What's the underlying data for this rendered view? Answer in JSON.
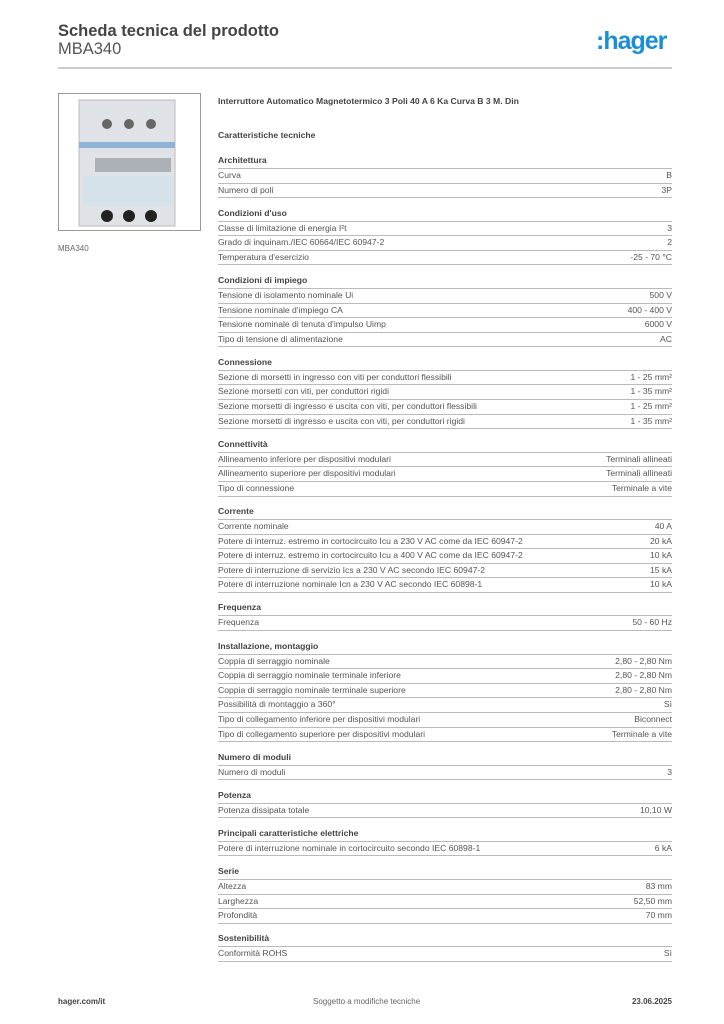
{
  "header": {
    "title": "Scheda tecnica del prodotto",
    "model": "MBA340",
    "logo": ":hager",
    "brand_color": "#1a8fd8"
  },
  "image": {
    "caption": "MBA340"
  },
  "product_name": "Interruttore Automatico Magnetotermico 3 Poli 40 A 6 Ka Curva B 3 M. Din",
  "subtitle": "Caratteristiche tecniche",
  "sections": [
    {
      "title": "Architettura",
      "rows": [
        [
          "Curva",
          "B"
        ],
        [
          "Numero di poli",
          "3P"
        ]
      ]
    },
    {
      "title": "Condizioni d'uso",
      "rows": [
        [
          "Classe di limitazione di energia I²t",
          "3"
        ],
        [
          "Grado di inquinam./IEC 60664/IEC 60947-2",
          "2"
        ],
        [
          "Temperatura d'esercizio",
          "-25 - 70 °C"
        ]
      ]
    },
    {
      "title": "Condizioni di impiego",
      "rows": [
        [
          "Tensione di isolamento nominale Ui",
          "500 V"
        ],
        [
          "Tensione nominale d'impiego CA",
          "400 - 400 V"
        ],
        [
          "Tensione nominale di tenuta d'impulso Uimp",
          "6000 V"
        ],
        [
          "Tipo di tensione di alimentazione",
          "AC"
        ]
      ]
    },
    {
      "title": "Connessione",
      "rows": [
        [
          "Sezione di morsetti in ingresso con viti per conduttori flessibili",
          "1 - 25 mm²"
        ],
        [
          "Sezione morsetti con viti, per conduttori rigidi",
          "1 - 35 mm²"
        ],
        [
          "Sezione morsetti di ingresso e uscita con viti, per conduttori flessibili",
          "1 - 25 mm²"
        ],
        [
          "Sezione morsetti di ingresso e uscita con viti, per conduttori rigidi",
          "1 - 35 mm²"
        ]
      ]
    },
    {
      "title": "Connettività",
      "rows": [
        [
          "Allineamento inferiore per dispositivi modulari",
          "Terminali allineati"
        ],
        [
          "Allineamento superiore per dispositivi modulari",
          "Terminali allineati"
        ],
        [
          "Tipo di connessione",
          "Terminale a vite"
        ]
      ]
    },
    {
      "title": "Corrente",
      "rows": [
        [
          "Corrente nominale",
          "40 A"
        ],
        [
          "Potere di interruz. estremo in cortocircuito Icu a 230 V AC come da IEC 60947-2",
          "20 kA"
        ],
        [
          "Potere di interruz. estremo in cortocircuito Icu a 400 V AC come da IEC 60947-2",
          "10 kA"
        ],
        [
          "Potere di interruzione di servizio Ics a 230 V AC secondo IEC 60947-2",
          "15 kA"
        ],
        [
          "Potere di interruzione nominale Icn a 230 V AC secondo IEC 60898-1",
          "10 kA"
        ]
      ]
    },
    {
      "title": "Frequenza",
      "rows": [
        [
          "Frequenza",
          "50 - 60 Hz"
        ]
      ]
    },
    {
      "title": "Installazione, montaggio",
      "rows": [
        [
          "Coppia di serraggio nominale",
          "2,80 - 2,80 Nm"
        ],
        [
          "Coppia di serraggio nominale terminale inferiore",
          "2,80 - 2,80 Nm"
        ],
        [
          "Coppia di serraggio nominale terminale superiore",
          "2,80 - 2,80 Nm"
        ],
        [
          "Possibilità di montaggio a 360°",
          "Sì"
        ],
        [
          "Tipo di collegamento inferiore per dispositivi modulari",
          "Biconnect"
        ],
        [
          "Tipo di collegamento superiore per dispositivi modulari",
          "Terminale a vite"
        ]
      ]
    },
    {
      "title": "Numero di moduli",
      "rows": [
        [
          "Numero di moduli",
          "3"
        ]
      ]
    },
    {
      "title": "Potenza",
      "rows": [
        [
          "Potenza dissipata totale",
          "10,10 W"
        ]
      ]
    },
    {
      "title": "Principali caratteristiche elettriche",
      "rows": [
        [
          "Potere di interruzione nominale in cortocircuito secondo IEC 60898-1",
          "6 kA"
        ]
      ]
    },
    {
      "title": "Serie",
      "rows": [
        [
          "Altezza",
          "83 mm"
        ],
        [
          "Larghezza",
          "52,50 mm"
        ],
        [
          "Profondità",
          "70 mm"
        ]
      ]
    },
    {
      "title": "Sostenibilità",
      "rows": [
        [
          "Conformità ROHS",
          "Sì"
        ]
      ]
    }
  ],
  "footer": {
    "website": "hager.com/it",
    "note": "Soggetto a modifiche tecniche",
    "date": "23.06.2025"
  }
}
